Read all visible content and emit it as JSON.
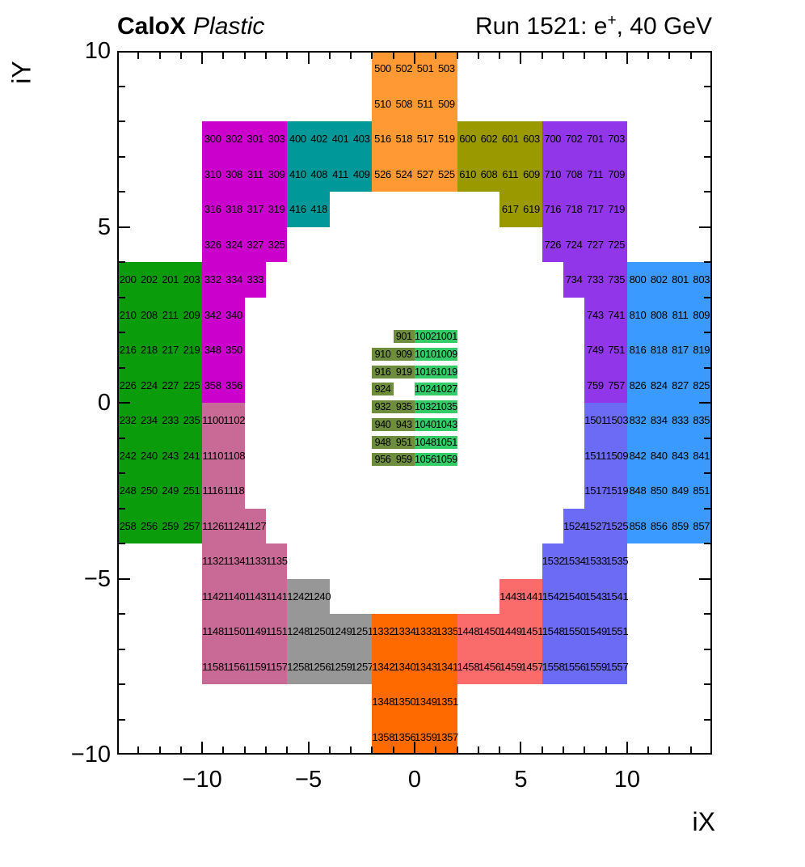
{
  "header": {
    "brand": "CaloX",
    "variant": "Plastic",
    "run": {
      "prefix": "Run 1521: e",
      "sup": "+",
      "suffix": ", 40 GeV"
    }
  },
  "chart_data": {
    "type": "heatmap",
    "title": "CaloX Plastic  Run 1521: e+, 40 GeV",
    "xlabel": "iX",
    "ylabel": "iY",
    "xlim": [
      -14,
      14
    ],
    "ylim": [
      -10,
      10
    ],
    "grid": false,
    "x_axis": {
      "title": "iX",
      "ticks": [
        {
          "v": -10,
          "label": "−10"
        },
        {
          "v": -5,
          "label": "−5"
        },
        {
          "v": 0,
          "label": "0"
        },
        {
          "v": 5,
          "label": "5"
        },
        {
          "v": 10,
          "label": "10"
        }
      ]
    },
    "y_axis": {
      "title": "iY",
      "ticks": [
        {
          "v": 10,
          "label": "10"
        },
        {
          "v": 5,
          "label": "5"
        },
        {
          "v": 0,
          "label": "0"
        },
        {
          "v": -5,
          "label": "−5"
        },
        {
          "v": -10,
          "label": "−10"
        }
      ]
    },
    "regions": [
      {
        "id": "200",
        "color": "#0A9C0A",
        "rows": [
          {
            "y": 4,
            "x": -14,
            "c": [
              "200",
              "202",
              "201",
              "203"
            ]
          },
          {
            "y": 3,
            "x": -14,
            "c": [
              "210",
              "208",
              "211",
              "209"
            ]
          },
          {
            "y": 2,
            "x": -14,
            "c": [
              "216",
              "218",
              "217",
              "219"
            ]
          },
          {
            "y": 1,
            "x": -14,
            "c": [
              "226",
              "224",
              "227",
              "225"
            ]
          },
          {
            "y": 0,
            "x": -14,
            "c": [
              "232",
              "234",
              "233",
              "235"
            ]
          },
          {
            "y": -1,
            "x": -14,
            "c": [
              "242",
              "240",
              "243",
              "241"
            ]
          },
          {
            "y": -2,
            "x": -14,
            "c": [
              "248",
              "250",
              "249",
              "251"
            ]
          },
          {
            "y": -3,
            "x": -14,
            "c": [
              "258",
              "256",
              "259",
              "257"
            ]
          }
        ]
      },
      {
        "id": "300",
        "color": "#CC00CC",
        "rows": [
          {
            "y": 8,
            "x": -10,
            "c": [
              "300",
              "302",
              "301",
              "303"
            ]
          },
          {
            "y": 7,
            "x": -10,
            "c": [
              "310",
              "308",
              "311",
              "309"
            ]
          },
          {
            "y": 6,
            "x": -10,
            "c": [
              "316",
              "318",
              "317",
              "319"
            ]
          },
          {
            "y": 5,
            "x": -10,
            "c": [
              "326",
              "324",
              "327",
              "325"
            ]
          },
          {
            "y": 4,
            "x": -10,
            "c": [
              "332",
              "334",
              "333"
            ]
          },
          {
            "y": 3,
            "x": -10,
            "c": [
              "342",
              "340"
            ]
          },
          {
            "y": 2,
            "x": -10,
            "c": [
              "348",
              "350"
            ]
          },
          {
            "y": 1,
            "x": -10,
            "c": [
              "358",
              "356"
            ]
          }
        ]
      },
      {
        "id": "400",
        "color": "#009898",
        "rows": [
          {
            "y": 8,
            "x": -6,
            "c": [
              "400",
              "402",
              "401",
              "403"
            ]
          },
          {
            "y": 7,
            "x": -6,
            "c": [
              "410",
              "408",
              "411",
              "409"
            ]
          },
          {
            "y": 6,
            "x": -6,
            "c": [
              "416",
              "418"
            ]
          }
        ]
      },
      {
        "id": "500",
        "color": "#FF9933",
        "rows": [
          {
            "y": 10,
            "x": -2,
            "c": [
              "500",
              "502",
              "501",
              "503"
            ]
          },
          {
            "y": 9,
            "x": -2,
            "c": [
              "510",
              "508",
              "511",
              "509"
            ]
          },
          {
            "y": 8,
            "x": -2,
            "c": [
              "516",
              "518",
              "517",
              "519"
            ]
          },
          {
            "y": 7,
            "x": -2,
            "c": [
              "526",
              "524",
              "527",
              "525"
            ]
          }
        ]
      },
      {
        "id": "600",
        "color": "#9A9A00",
        "rows": [
          {
            "y": 8,
            "x": 2,
            "c": [
              "600",
              "602",
              "601",
              "603"
            ]
          },
          {
            "y": 7,
            "x": 2,
            "c": [
              "610",
              "608",
              "611",
              "609"
            ]
          },
          {
            "y": 6,
            "x": 4,
            "c": [
              "617",
              "619"
            ]
          }
        ]
      },
      {
        "id": "700",
        "color": "#9136E8",
        "rows": [
          {
            "y": 8,
            "x": 6,
            "c": [
              "700",
              "702",
              "701",
              "703"
            ]
          },
          {
            "y": 7,
            "x": 6,
            "c": [
              "710",
              "708",
              "711",
              "709"
            ]
          },
          {
            "y": 6,
            "x": 6,
            "c": [
              "716",
              "718",
              "717",
              "719"
            ]
          },
          {
            "y": 5,
            "x": 6,
            "c": [
              "726",
              "724",
              "727",
              "725"
            ]
          },
          {
            "y": 4,
            "x": 7,
            "c": [
              "734",
              "733",
              "735"
            ]
          },
          {
            "y": 3,
            "x": 8,
            "c": [
              "743",
              "741"
            ]
          },
          {
            "y": 2,
            "x": 8,
            "c": [
              "749",
              "751"
            ]
          },
          {
            "y": 1,
            "x": 8,
            "c": [
              "759",
              "757"
            ]
          }
        ]
      },
      {
        "id": "800",
        "color": "#3B9AFF",
        "rows": [
          {
            "y": 4,
            "x": 10,
            "c": [
              "800",
              "802",
              "801",
              "803"
            ]
          },
          {
            "y": 3,
            "x": 10,
            "c": [
              "810",
              "808",
              "811",
              "809"
            ]
          },
          {
            "y": 2,
            "x": 10,
            "c": [
              "816",
              "818",
              "817",
              "819"
            ]
          },
          {
            "y": 1,
            "x": 10,
            "c": [
              "826",
              "824",
              "827",
              "825"
            ]
          },
          {
            "y": 0,
            "x": 10,
            "c": [
              "832",
              "834",
              "833",
              "835"
            ]
          },
          {
            "y": -1,
            "x": 10,
            "c": [
              "842",
              "840",
              "843",
              "841"
            ]
          },
          {
            "y": -2,
            "x": 10,
            "c": [
              "848",
              "850",
              "849",
              "851"
            ]
          },
          {
            "y": -3,
            "x": 10,
            "c": [
              "858",
              "856",
              "859",
              "857"
            ]
          }
        ]
      },
      {
        "id": "900",
        "color": "#6E8E3E",
        "fine": true,
        "rows": [
          {
            "y": 2,
            "x": -1,
            "c": [
              "901"
            ]
          },
          {
            "y": 1.5,
            "x": -2,
            "c": [
              "910",
              "909"
            ]
          },
          {
            "y": 1,
            "x": -2,
            "c": [
              "916",
              "919"
            ]
          },
          {
            "y": 0.5,
            "x": -2,
            "c": [
              "924"
            ]
          },
          {
            "y": 0,
            "x": -2,
            "c": [
              "932",
              "935"
            ]
          },
          {
            "y": -0.5,
            "x": -2,
            "c": [
              "940",
              "943"
            ]
          },
          {
            "y": -1,
            "x": -2,
            "c": [
              "948",
              "951"
            ]
          },
          {
            "y": -1.5,
            "x": -2,
            "c": [
              "956",
              "959"
            ]
          }
        ]
      },
      {
        "id": "1000",
        "color": "#33CC66",
        "fine": true,
        "rows": [
          {
            "y": 2,
            "x": 0,
            "c": [
              "1002",
              "1001"
            ]
          },
          {
            "y": 1.5,
            "x": 0,
            "c": [
              "1010",
              "1009"
            ]
          },
          {
            "y": 1,
            "x": 0,
            "c": [
              "1016",
              "1019"
            ]
          },
          {
            "y": 0.5,
            "x": 0,
            "c": [
              "1024",
              "1027"
            ]
          },
          {
            "y": 0,
            "x": 0,
            "c": [
              "1032",
              "1035"
            ]
          },
          {
            "y": -0.5,
            "x": 0,
            "c": [
              "1040",
              "1043"
            ]
          },
          {
            "y": -1,
            "x": 0,
            "c": [
              "1048",
              "1051"
            ]
          },
          {
            "y": -1.5,
            "x": 0,
            "c": [
              "1056",
              "1059"
            ]
          }
        ]
      },
      {
        "id": "1100",
        "color": "#C96A96",
        "rows": [
          {
            "y": 0,
            "x": -10,
            "c": [
              "1100",
              "1102"
            ]
          },
          {
            "y": -1,
            "x": -10,
            "c": [
              "1110",
              "1108"
            ]
          },
          {
            "y": -2,
            "x": -10,
            "c": [
              "1116",
              "1118"
            ]
          },
          {
            "y": -3,
            "x": -10,
            "c": [
              "1126",
              "1124",
              "1127"
            ]
          },
          {
            "y": -4,
            "x": -10,
            "c": [
              "1132",
              "1134",
              "1133",
              "1135"
            ]
          },
          {
            "y": -5,
            "x": -10,
            "c": [
              "1142",
              "1140",
              "1143",
              "1141"
            ]
          },
          {
            "y": -6,
            "x": -10,
            "c": [
              "1148",
              "1150",
              "1149",
              "1151"
            ]
          },
          {
            "y": -7,
            "x": -10,
            "c": [
              "1158",
              "1156",
              "1159",
              "1157"
            ]
          }
        ]
      },
      {
        "id": "1200",
        "color": "#979797",
        "rows": [
          {
            "y": -5,
            "x": -6,
            "c": [
              "1242",
              "1240"
            ]
          },
          {
            "y": -6,
            "x": -6,
            "c": [
              "1248",
              "1250",
              "1249",
              "1251"
            ]
          },
          {
            "y": -7,
            "x": -6,
            "c": [
              "1258",
              "1256",
              "1259",
              "1257"
            ]
          }
        ]
      },
      {
        "id": "1300",
        "color": "#FF6A00",
        "rows": [
          {
            "y": -6,
            "x": -2,
            "c": [
              "1332",
              "1334",
              "1333",
              "1335"
            ]
          },
          {
            "y": -7,
            "x": -2,
            "c": [
              "1342",
              "1340",
              "1343",
              "1341"
            ]
          },
          {
            "y": -8,
            "x": -2,
            "c": [
              "1348",
              "1350",
              "1349",
              "1351"
            ]
          },
          {
            "y": -9,
            "x": -2,
            "c": [
              "1358",
              "1356",
              "1359",
              "1357"
            ]
          }
        ]
      },
      {
        "id": "1400",
        "color": "#FA6B6B",
        "rows": [
          {
            "y": -5,
            "x": 4,
            "c": [
              "1443",
              "1441"
            ]
          },
          {
            "y": -6,
            "x": 2,
            "c": [
              "1448",
              "1450",
              "1449",
              "1451"
            ]
          },
          {
            "y": -7,
            "x": 2,
            "c": [
              "1458",
              "1456",
              "1459",
              "1457"
            ]
          }
        ]
      },
      {
        "id": "1500",
        "color": "#6B6BF5",
        "rows": [
          {
            "y": 0,
            "x": 8,
            "c": [
              "1501",
              "1503"
            ]
          },
          {
            "y": -1,
            "x": 8,
            "c": [
              "1511",
              "1509"
            ]
          },
          {
            "y": -2,
            "x": 8,
            "c": [
              "1517",
              "1519"
            ]
          },
          {
            "y": -3,
            "x": 7,
            "c": [
              "1524",
              "1527",
              "1525"
            ]
          },
          {
            "y": -4,
            "x": 6,
            "c": [
              "1532",
              "1534",
              "1533",
              "1535"
            ]
          },
          {
            "y": -5,
            "x": 6,
            "c": [
              "1542",
              "1540",
              "1543",
              "1541"
            ]
          },
          {
            "y": -6,
            "x": 6,
            "c": [
              "1548",
              "1550",
              "1549",
              "1551"
            ]
          },
          {
            "y": -7,
            "x": 6,
            "c": [
              "1558",
              "1556",
              "1559",
              "1557"
            ]
          }
        ]
      }
    ]
  }
}
